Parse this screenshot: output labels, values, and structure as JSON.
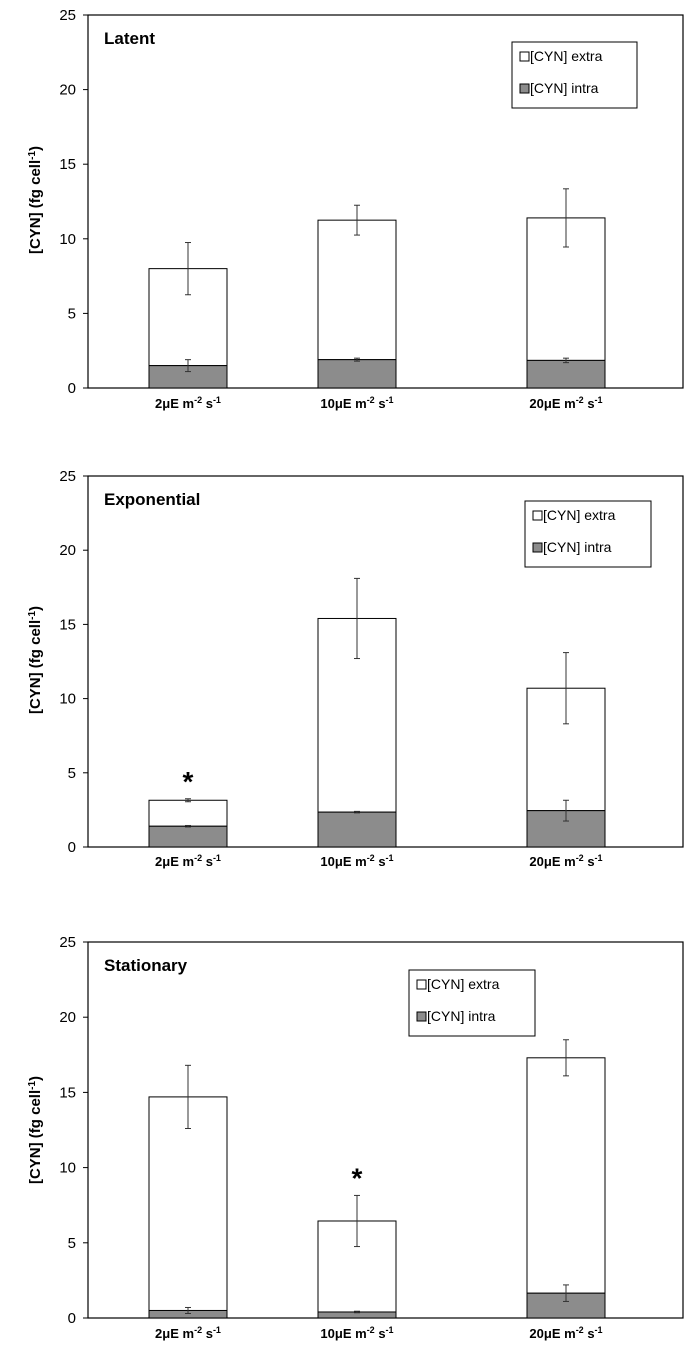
{
  "colors": {
    "extra": "#ffffff",
    "intra": "#8c8c8c",
    "axis": "#000000"
  },
  "chart_data": [
    {
      "type": "bar",
      "stacked": true,
      "title": "Latent",
      "ylabel": "[CYN] (fg cell-1)",
      "ylim": [
        0,
        25
      ],
      "yticks": [
        0,
        5,
        10,
        15,
        20,
        25
      ],
      "categories": [
        "2μE m-2 s-1",
        "10μE m-2 s-1",
        "20μE m-2 s-1"
      ],
      "series": [
        {
          "name": "[CYN] intra",
          "values": [
            1.5,
            1.9,
            1.85
          ],
          "errors": [
            0.4,
            0.1,
            0.15
          ]
        },
        {
          "name": "[CYN] extra",
          "values": [
            6.5,
            9.35,
            9.55
          ],
          "errors": [
            1.75,
            1.0,
            1.95
          ]
        }
      ],
      "significance": [
        "",
        "",
        ""
      ],
      "legend_position": "top-right"
    },
    {
      "type": "bar",
      "stacked": true,
      "title": "Exponential",
      "ylabel": "[CYN] (fg cell-1)",
      "ylim": [
        0,
        25
      ],
      "yticks": [
        0,
        5,
        10,
        15,
        20,
        25
      ],
      "categories": [
        "2μE m-2 s-1",
        "10μE m-2 s-1",
        "20μE m-2 s-1"
      ],
      "series": [
        {
          "name": "[CYN] intra",
          "values": [
            1.4,
            2.35,
            2.45
          ],
          "errors": [
            0.05,
            0.05,
            0.7
          ]
        },
        {
          "name": "[CYN] extra",
          "values": [
            1.75,
            13.05,
            8.25
          ],
          "errors": [
            0.1,
            2.7,
            2.4
          ]
        }
      ],
      "significance": [
        "*",
        "",
        ""
      ],
      "legend_position": "top-right"
    },
    {
      "type": "bar",
      "stacked": true,
      "title": "Stationary",
      "ylabel": "[CYN] (fg cell-1)",
      "ylim": [
        0,
        25
      ],
      "yticks": [
        0,
        5,
        10,
        15,
        20,
        25
      ],
      "categories": [
        "2μE m-2 s-1",
        "10μE m-2 s-1",
        "20μE m-2 s-1"
      ],
      "series": [
        {
          "name": "[CYN] intra",
          "values": [
            0.5,
            0.4,
            1.65
          ],
          "errors": [
            0.2,
            0.05,
            0.55
          ]
        },
        {
          "name": "[CYN] extra",
          "values": [
            14.2,
            6.05,
            15.65
          ],
          "errors": [
            2.1,
            1.7,
            1.2
          ]
        }
      ],
      "significance": [
        "",
        "*",
        ""
      ],
      "legend_position": "top-center"
    }
  ]
}
